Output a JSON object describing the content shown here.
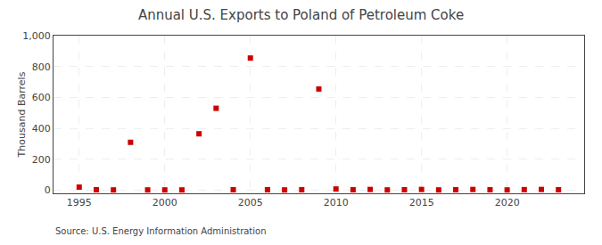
{
  "chart_data": {
    "type": "scatter",
    "title": "Annual U.S. Exports to Poland of Petroleum Coke",
    "ylabel": "Thousand Barrels",
    "annotations": [
      "Source: U.S. Energy Information Administration"
    ],
    "x": [
      1995,
      1996,
      1997,
      1998,
      1999,
      2000,
      2001,
      2002,
      2003,
      2004,
      2005,
      2006,
      2007,
      2008,
      2009,
      2010,
      2011,
      2012,
      2013,
      2014,
      2015,
      2016,
      2017,
      2018,
      2019,
      2020,
      2021,
      2022,
      2023
    ],
    "values": [
      20,
      3,
      2,
      310,
      2,
      2,
      2,
      365,
      530,
      3,
      855,
      3,
      2,
      3,
      655,
      8,
      3,
      5,
      2,
      3,
      5,
      2,
      3,
      5,
      3,
      2,
      4,
      5,
      3
    ],
    "color": "#cc0000",
    "marker": "square",
    "xlim": [
      1993.5,
      2024.5
    ],
    "xticks": [
      1995,
      2000,
      2005,
      2010,
      2015,
      2020
    ],
    "ylim": [
      -20,
      1000
    ],
    "yticks": [
      0,
      200,
      400,
      600,
      800,
      {
        "value": 1000,
        "label": "1,000"
      }
    ],
    "grid": true
  }
}
